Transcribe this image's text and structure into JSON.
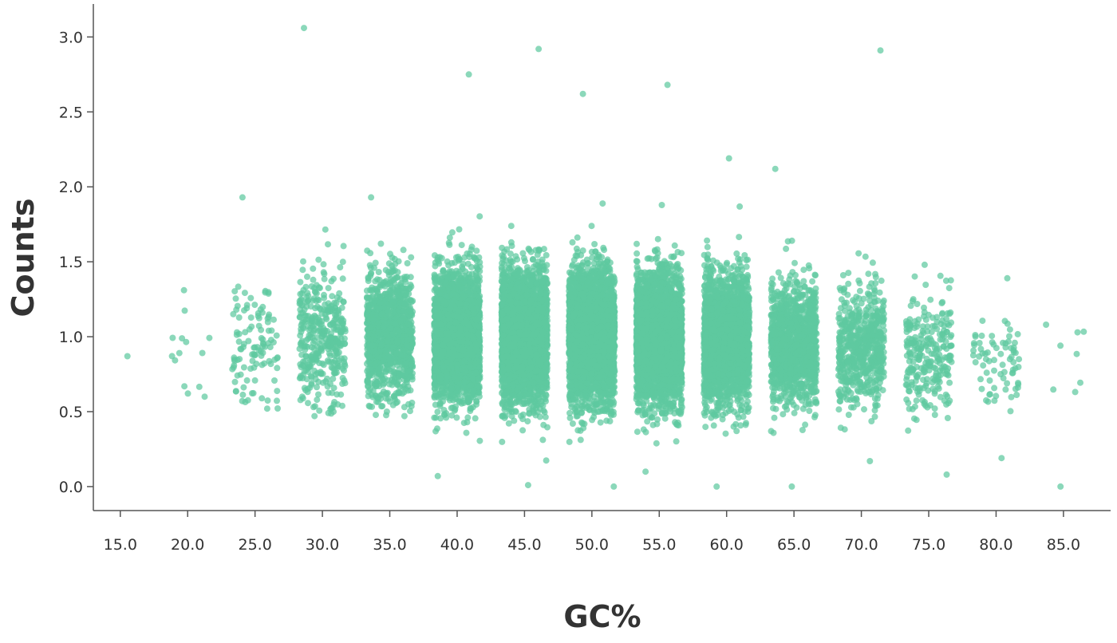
{
  "chart_data": {
    "type": "scatter",
    "subtype": "strip (jittered)",
    "title": "",
    "xlabel": "GC%",
    "ylabel": "Counts",
    "x_ticks": [
      "15.0",
      "20.0",
      "25.0",
      "30.0",
      "35.0",
      "40.0",
      "45.0",
      "50.0",
      "55.0",
      "60.0",
      "65.0",
      "70.0",
      "75.0",
      "80.0",
      "85.0"
    ],
    "y_ticks": [
      "0.0",
      "0.5",
      "1.0",
      "1.5",
      "2.0",
      "2.5",
      "3.0"
    ],
    "xlim": [
      13,
      88.5
    ],
    "ylim": [
      -0.16,
      3.22
    ],
    "grid": false,
    "legend": "none",
    "point_color": "#5ec9a0",
    "series": [
      {
        "groups": [
          {
            "gc": 15,
            "n": 1,
            "q1": 0.87,
            "q3": 0.87,
            "min": 0.87,
            "max": 0.87
          },
          {
            "gc": 20,
            "n": 14,
            "q1": 0.75,
            "q3": 1.05,
            "min": 0.6,
            "max": 1.31
          },
          {
            "gc": 25,
            "n": 110,
            "q1": 0.82,
            "q3": 1.12,
            "min": 0.52,
            "max": 1.93
          },
          {
            "gc": 30,
            "n": 380,
            "q1": 0.85,
            "q3": 1.15,
            "min": 0.47,
            "max": 3.06
          },
          {
            "gc": 35,
            "n": 1100,
            "q1": 0.86,
            "q3": 1.14,
            "min": 0.47,
            "max": 1.93
          },
          {
            "gc": 40,
            "n": 2600,
            "q1": 0.87,
            "q3": 1.15,
            "min": 0.07,
            "max": 2.75
          },
          {
            "gc": 45,
            "n": 3300,
            "q1": 0.86,
            "q3": 1.14,
            "min": 0.01,
            "max": 2.92
          },
          {
            "gc": 50,
            "n": 3500,
            "q1": 0.86,
            "q3": 1.14,
            "min": 0.0,
            "max": 2.62
          },
          {
            "gc": 55,
            "n": 3200,
            "q1": 0.85,
            "q3": 1.13,
            "min": 0.1,
            "max": 2.68
          },
          {
            "gc": 60,
            "n": 2300,
            "q1": 0.84,
            "q3": 1.12,
            "min": 0.0,
            "max": 2.19
          },
          {
            "gc": 65,
            "n": 1200,
            "q1": 0.82,
            "q3": 1.08,
            "min": 0.0,
            "max": 2.12
          },
          {
            "gc": 70,
            "n": 600,
            "q1": 0.79,
            "q3": 1.05,
            "min": 0.17,
            "max": 2.91
          },
          {
            "gc": 75,
            "n": 260,
            "q1": 0.74,
            "q3": 1.0,
            "min": 0.08,
            "max": 1.48
          },
          {
            "gc": 80,
            "n": 75,
            "q1": 0.74,
            "q3": 0.96,
            "min": 0.19,
            "max": 1.39
          },
          {
            "gc": 85,
            "n": 9,
            "q1": 0.78,
            "q3": 0.95,
            "min": 0.0,
            "max": 1.08
          }
        ]
      }
    ]
  }
}
